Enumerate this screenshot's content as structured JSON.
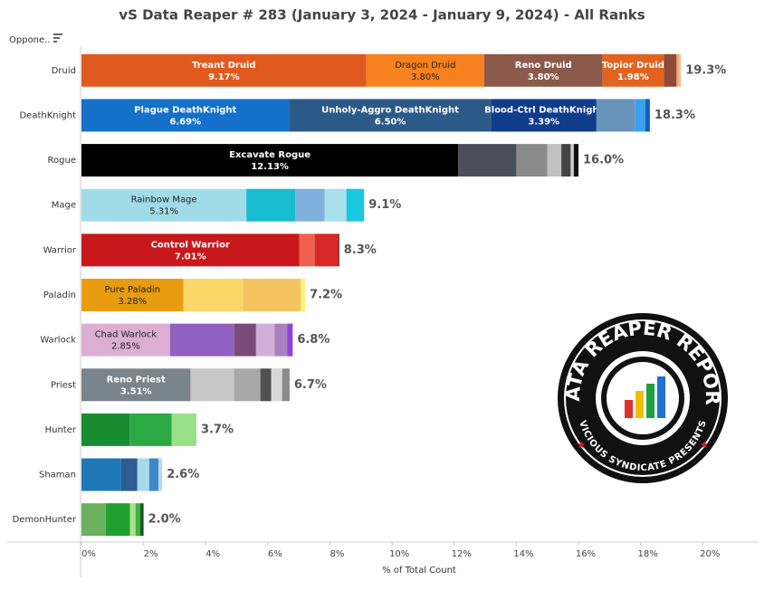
{
  "chart_data": {
    "type": "stacked-bar-horizontal",
    "title": "vS Data Reaper # 283 (January 3, 2024 - January 9, 2024) - All Ranks",
    "row_header": "Oppone..",
    "x_label": "% of Total Count",
    "xlim": [
      0,
      21.8
    ],
    "xticks": [
      {
        "value": 0,
        "label": "0%"
      },
      {
        "value": 2,
        "label": "2%"
      },
      {
        "value": 4,
        "label": "4%"
      },
      {
        "value": 6,
        "label": "6%"
      },
      {
        "value": 8,
        "label": "8%"
      },
      {
        "value": 10,
        "label": "10%"
      },
      {
        "value": 12,
        "label": "12%"
      },
      {
        "value": 14,
        "label": "14%"
      },
      {
        "value": 16,
        "label": "16%"
      },
      {
        "value": 18,
        "label": "18%"
      },
      {
        "value": 20,
        "label": "20%"
      }
    ],
    "bars": [
      {
        "category": "Druid",
        "total": 19.3,
        "total_label": "19.3%",
        "segments": [
          {
            "name": "Treant Druid",
            "value": 9.17,
            "value_label": "9.17%",
            "color": "#e05a1f"
          },
          {
            "name": "Dragon Druid",
            "value": 3.8,
            "value_label": "3.80%",
            "color": "#f7811e"
          },
          {
            "name": "Reno Druid",
            "value": 3.8,
            "value_label": "3.80%",
            "color": "#8c5a4a"
          },
          {
            "name": "Topior Druid",
            "value": 1.98,
            "value_label": "1.98%",
            "color": "#e0631f"
          },
          {
            "value": 0.4,
            "color": "#8f4a3a"
          },
          {
            "value": 0.08,
            "color": "#e8a070"
          },
          {
            "value": 0.07,
            "color": "#f2c090"
          }
        ]
      },
      {
        "category": "DeathKnight",
        "total": 18.3,
        "total_label": "18.3%",
        "segments": [
          {
            "name": "Plague DeathKnight",
            "value": 6.69,
            "value_label": "6.69%",
            "color": "#1470c8"
          },
          {
            "name": "Unholy-Aggro DeathKnight",
            "value": 6.5,
            "value_label": "6.50%",
            "color": "#2c5a88"
          },
          {
            "name": "Blood-Ctrl DeathKnight",
            "value": 3.39,
            "value_label": "3.39%",
            "color": "#103c8c"
          },
          {
            "value": 1.25,
            "color": "#6894bc"
          },
          {
            "value": 0.32,
            "color": "#3aa0f0"
          },
          {
            "value": 0.15,
            "color": "#1060c0"
          }
        ]
      },
      {
        "category": "Rogue",
        "total": 16.0,
        "total_label": "16.0%",
        "segments": [
          {
            "name": "Excavate Rogue",
            "value": 12.13,
            "value_label": "12.13%",
            "color": "#000000"
          },
          {
            "value": 1.87,
            "color": "#4a4e58"
          },
          {
            "value": 1.0,
            "color": "#8a8a8a"
          },
          {
            "value": 0.45,
            "color": "#c0c0c0"
          },
          {
            "value": 0.3,
            "color": "#444444"
          },
          {
            "value": 0.1,
            "color": "#d0d0d0"
          },
          {
            "value": 0.15,
            "color": "#111111"
          }
        ]
      },
      {
        "category": "Mage",
        "total": 9.1,
        "total_label": "9.1%",
        "segments": [
          {
            "name": "Rainbow Mage",
            "value": 5.31,
            "value_label": "5.31%",
            "color": "#a0dce8"
          },
          {
            "value": 1.57,
            "color": "#18bcd0"
          },
          {
            "value": 0.95,
            "color": "#80b0dc"
          },
          {
            "value": 0.7,
            "color": "#a8e0ec"
          },
          {
            "value": 0.57,
            "color": "#18c8e0"
          }
        ]
      },
      {
        "category": "Warrior",
        "total": 8.3,
        "total_label": "8.3%",
        "segments": [
          {
            "name": "Control Warrior",
            "value": 7.01,
            "value_label": "7.01%",
            "color": "#c8181c"
          },
          {
            "value": 0.5,
            "color": "#f06050"
          },
          {
            "value": 0.75,
            "color": "#d82828"
          },
          {
            "value": 0.04,
            "color": "#801010"
          }
        ]
      },
      {
        "category": "Paladin",
        "total": 7.2,
        "total_label": "7.2%",
        "segments": [
          {
            "name": "Pure Paladin",
            "value": 3.28,
            "value_label": "3.28%",
            "color": "#e89c10"
          },
          {
            "value": 1.92,
            "color": "#fcd868"
          },
          {
            "value": 1.86,
            "color": "#f4c460"
          },
          {
            "value": 0.14,
            "color": "#fff080"
          }
        ]
      },
      {
        "category": "Warlock",
        "total": 6.8,
        "total_label": "6.8%",
        "segments": [
          {
            "name": "Chad Warlock",
            "value": 2.85,
            "value_label": "2.85%",
            "color": "#dcaed4"
          },
          {
            "value": 2.07,
            "color": "#9060c0"
          },
          {
            "value": 0.7,
            "color": "#7a4a78"
          },
          {
            "value": 0.6,
            "color": "#d0b0d8"
          },
          {
            "value": 0.4,
            "color": "#a880c0"
          },
          {
            "value": 0.18,
            "color": "#9040e0"
          }
        ]
      },
      {
        "category": "Priest",
        "total": 6.7,
        "total_label": "6.7%",
        "segments": [
          {
            "name": "Reno Priest",
            "value": 3.51,
            "value_label": "3.51%",
            "color": "#7a848c"
          },
          {
            "value": 1.4,
            "color": "#c8c8c8"
          },
          {
            "value": 0.85,
            "color": "#a8a8a8"
          },
          {
            "value": 0.35,
            "color": "#505050"
          },
          {
            "value": 0.35,
            "color": "#d8d8d8"
          },
          {
            "value": 0.24,
            "color": "#8a8a8a"
          }
        ]
      },
      {
        "category": "Hunter",
        "total": 3.7,
        "total_label": "3.7%",
        "segments": [
          {
            "value": 1.55,
            "color": "#188c30"
          },
          {
            "value": 1.35,
            "color": "#2ca844"
          },
          {
            "value": 0.8,
            "color": "#98e088"
          }
        ]
      },
      {
        "category": "Shaman",
        "total": 2.6,
        "total_label": "2.6%",
        "segments": [
          {
            "value": 1.28,
            "color": "#2078b8"
          },
          {
            "value": 0.52,
            "color": "#2c5c90"
          },
          {
            "value": 0.38,
            "color": "#a8d8ec"
          },
          {
            "value": 0.3,
            "color": "#3c88c8"
          },
          {
            "value": 0.12,
            "color": "#b8d8f0"
          }
        ]
      },
      {
        "category": "DemonHunter",
        "total": 2.0,
        "total_label": "2.0%",
        "segments": [
          {
            "value": 0.78,
            "color": "#6cb060"
          },
          {
            "value": 0.78,
            "color": "#20a030"
          },
          {
            "value": 0.18,
            "color": "#a8e090"
          },
          {
            "value": 0.15,
            "color": "#40b040"
          },
          {
            "value": 0.11,
            "color": "#185a20"
          }
        ]
      }
    ],
    "logo": {
      "title": "DATA REAPER REPORT",
      "subtitle": "VICIOUS SYNDICATE PRESENTS"
    }
  }
}
